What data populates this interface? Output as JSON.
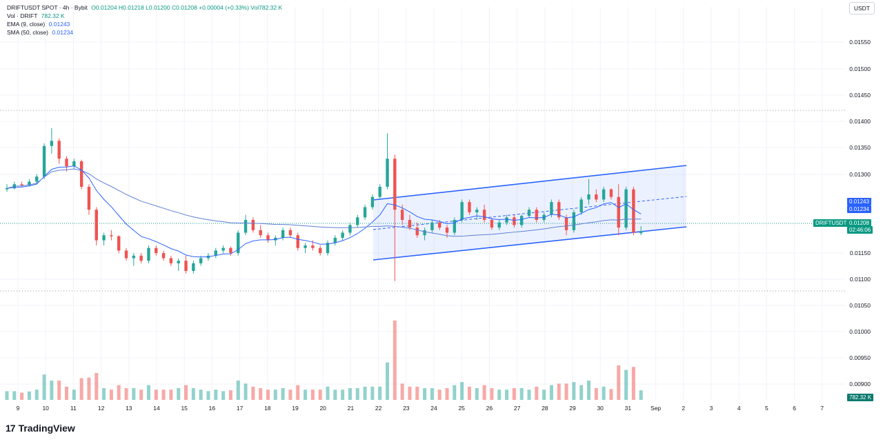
{
  "legend": {
    "title": "DRIFTUSDT SPOT · 4h · Bybit",
    "ohlc": "O0.01204 H0.01218 L0.01200 C0.01208 +0.00004 (+0.33%) Vol782.32 K",
    "vol_label": "Vol · DRIFT",
    "vol_value": "782.32 K",
    "ema_label": "EMA (9, close)",
    "ema_value": "0.01243",
    "sma_label": "SMA (50, close)",
    "sma_value": "0.01234"
  },
  "currency_button": "USDT",
  "brand": "TradingView",
  "brand_logo": "17",
  "price_axis": {
    "ticks": [
      "0.01550",
      "0.01500",
      "0.01450",
      "0.01400",
      "0.01350",
      "0.01300",
      "0.01150",
      "0.01100",
      "0.01050",
      "0.01000",
      "0.00950",
      "0.00900"
    ],
    "ema_tag": "0.01243",
    "sma_tag": "0.01234",
    "symbol_tag": "DRIFTUSDT",
    "last_price_tag": "0.01208",
    "countdown_tag": "02:46:06",
    "volume_tag": "782.32 K"
  },
  "time_axis": {
    "ticks": [
      "9",
      "10",
      "11",
      "12",
      "13",
      "14",
      "15",
      "16",
      "17",
      "18",
      "19",
      "20",
      "21",
      "22",
      "23",
      "24",
      "25",
      "26",
      "27",
      "28",
      "29",
      "30",
      "31",
      "Sep",
      "2",
      "3",
      "4",
      "5",
      "6",
      "7"
    ]
  },
  "colors": {
    "up": "#26a69a",
    "down": "#ef5350",
    "ema": "#2962ff",
    "sma": "#5b7fd6",
    "channel": "#2962ff"
  },
  "chart_data": {
    "type": "candlestick",
    "symbol": "DRIFTUSDT",
    "interval": "4h",
    "exchange": "Bybit",
    "ylim": [
      0.0108,
      0.0158
    ],
    "last_close": 0.01208,
    "candles_ohlc": [
      [
        0.0129,
        0.013,
        0.01285,
        0.01292
      ],
      [
        0.01292,
        0.01305,
        0.0129,
        0.013
      ],
      [
        0.013,
        0.01305,
        0.01295,
        0.01298
      ],
      [
        0.01298,
        0.0131,
        0.01296,
        0.01305
      ],
      [
        0.01305,
        0.0132,
        0.013,
        0.01315
      ],
      [
        0.01315,
        0.0138,
        0.0131,
        0.01375
      ],
      [
        0.01375,
        0.0141,
        0.0136,
        0.01385
      ],
      [
        0.01385,
        0.0139,
        0.0134,
        0.0135
      ],
      [
        0.0135,
        0.01355,
        0.01325,
        0.01335
      ],
      [
        0.01335,
        0.0135,
        0.0133,
        0.01345
      ],
      [
        0.01345,
        0.01348,
        0.0129,
        0.01295
      ],
      [
        0.01295,
        0.013,
        0.0124,
        0.0125
      ],
      [
        0.0125,
        0.01255,
        0.0118,
        0.0119
      ],
      [
        0.0119,
        0.01205,
        0.0118,
        0.012
      ],
      [
        0.012,
        0.0121,
        0.0119,
        0.01198
      ],
      [
        0.01198,
        0.012,
        0.01165,
        0.0117
      ],
      [
        0.0117,
        0.01175,
        0.0115,
        0.01155
      ],
      [
        0.01155,
        0.01165,
        0.0114,
        0.0116
      ],
      [
        0.0116,
        0.01165,
        0.01145,
        0.0115
      ],
      [
        0.0115,
        0.0118,
        0.01145,
        0.01175
      ],
      [
        0.01175,
        0.0118,
        0.0116,
        0.01165
      ],
      [
        0.01165,
        0.0117,
        0.0115,
        0.01155
      ],
      [
        0.01155,
        0.0116,
        0.0114,
        0.01145
      ],
      [
        0.01145,
        0.01155,
        0.0113,
        0.0115
      ],
      [
        0.0115,
        0.0116,
        0.01125,
        0.0113
      ],
      [
        0.0113,
        0.0115,
        0.01125,
        0.01145
      ],
      [
        0.01145,
        0.0116,
        0.0114,
        0.01155
      ],
      [
        0.01155,
        0.01165,
        0.0115,
        0.0116
      ],
      [
        0.0116,
        0.01175,
        0.01155,
        0.0117
      ],
      [
        0.0117,
        0.0118,
        0.01165,
        0.01175
      ],
      [
        0.01175,
        0.01178,
        0.0116,
        0.01165
      ],
      [
        0.01165,
        0.0121,
        0.0116,
        0.01205
      ],
      [
        0.01205,
        0.0124,
        0.012,
        0.0123
      ],
      [
        0.0123,
        0.01235,
        0.01205,
        0.0121
      ],
      [
        0.0121,
        0.0122,
        0.01195,
        0.012
      ],
      [
        0.012,
        0.01205,
        0.01185,
        0.0119
      ],
      [
        0.0119,
        0.012,
        0.0118,
        0.01195
      ],
      [
        0.01195,
        0.01215,
        0.0119,
        0.0121
      ],
      [
        0.0121,
        0.01215,
        0.01195,
        0.012
      ],
      [
        0.012,
        0.01205,
        0.0117,
        0.01175
      ],
      [
        0.01175,
        0.01185,
        0.01165,
        0.0118
      ],
      [
        0.0118,
        0.0119,
        0.0117,
        0.01175
      ],
      [
        0.01175,
        0.0118,
        0.0116,
        0.01165
      ],
      [
        0.01165,
        0.0119,
        0.0116,
        0.01185
      ],
      [
        0.01185,
        0.012,
        0.0118,
        0.01195
      ],
      [
        0.01195,
        0.0121,
        0.0119,
        0.01205
      ],
      [
        0.01205,
        0.01225,
        0.012,
        0.0122
      ],
      [
        0.0122,
        0.0124,
        0.01215,
        0.01235
      ],
      [
        0.01235,
        0.0126,
        0.0123,
        0.01255
      ],
      [
        0.01255,
        0.0128,
        0.0125,
        0.01275
      ],
      [
        0.01275,
        0.013,
        0.0127,
        0.01295
      ],
      [
        0.01295,
        0.014,
        0.0129,
        0.0135
      ],
      [
        0.0135,
        0.01358,
        0.0111,
        0.0125
      ],
      [
        0.0125,
        0.0126,
        0.0122,
        0.0123
      ],
      [
        0.0123,
        0.0124,
        0.0121,
        0.01215
      ],
      [
        0.01215,
        0.01225,
        0.01195,
        0.012
      ],
      [
        0.012,
        0.01215,
        0.0119,
        0.0121
      ],
      [
        0.0121,
        0.0123,
        0.01205,
        0.01225
      ],
      [
        0.01225,
        0.0123,
        0.0121,
        0.01215
      ],
      [
        0.01215,
        0.0122,
        0.01195,
        0.01205
      ],
      [
        0.01205,
        0.01235,
        0.012,
        0.0123
      ],
      [
        0.0123,
        0.0127,
        0.01225,
        0.01265
      ],
      [
        0.01265,
        0.0127,
        0.0124,
        0.01245
      ],
      [
        0.01245,
        0.01255,
        0.0123,
        0.0125
      ],
      [
        0.0125,
        0.0126,
        0.01225,
        0.0123
      ],
      [
        0.0123,
        0.01235,
        0.0121,
        0.01215
      ],
      [
        0.01215,
        0.0123,
        0.0121,
        0.01225
      ],
      [
        0.01225,
        0.0124,
        0.0122,
        0.01235
      ],
      [
        0.01235,
        0.0124,
        0.01215,
        0.0122
      ],
      [
        0.0122,
        0.0124,
        0.01215,
        0.01238
      ],
      [
        0.01238,
        0.01255,
        0.01235,
        0.0125
      ],
      [
        0.0125,
        0.01255,
        0.01225,
        0.0123
      ],
      [
        0.0123,
        0.01245,
        0.01225,
        0.0124
      ],
      [
        0.0124,
        0.0127,
        0.01235,
        0.01265
      ],
      [
        0.01265,
        0.0127,
        0.0123,
        0.01235
      ],
      [
        0.01235,
        0.0124,
        0.012,
        0.0121
      ],
      [
        0.0121,
        0.0125,
        0.01205,
        0.01245
      ],
      [
        0.01245,
        0.01275,
        0.0124,
        0.0127
      ],
      [
        0.0127,
        0.0131,
        0.0126,
        0.0128
      ],
      [
        0.0128,
        0.0129,
        0.01265,
        0.0127
      ],
      [
        0.0127,
        0.01295,
        0.01265,
        0.0129
      ],
      [
        0.0129,
        0.01292,
        0.0127,
        0.01275
      ],
      [
        0.01275,
        0.013,
        0.012,
        0.01215
      ],
      [
        0.01215,
        0.01295,
        0.0121,
        0.0129
      ],
      [
        0.0129,
        0.01295,
        0.012,
        0.01205
      ],
      [
        0.01204,
        0.01218,
        0.012,
        0.01208
      ]
    ]
  }
}
